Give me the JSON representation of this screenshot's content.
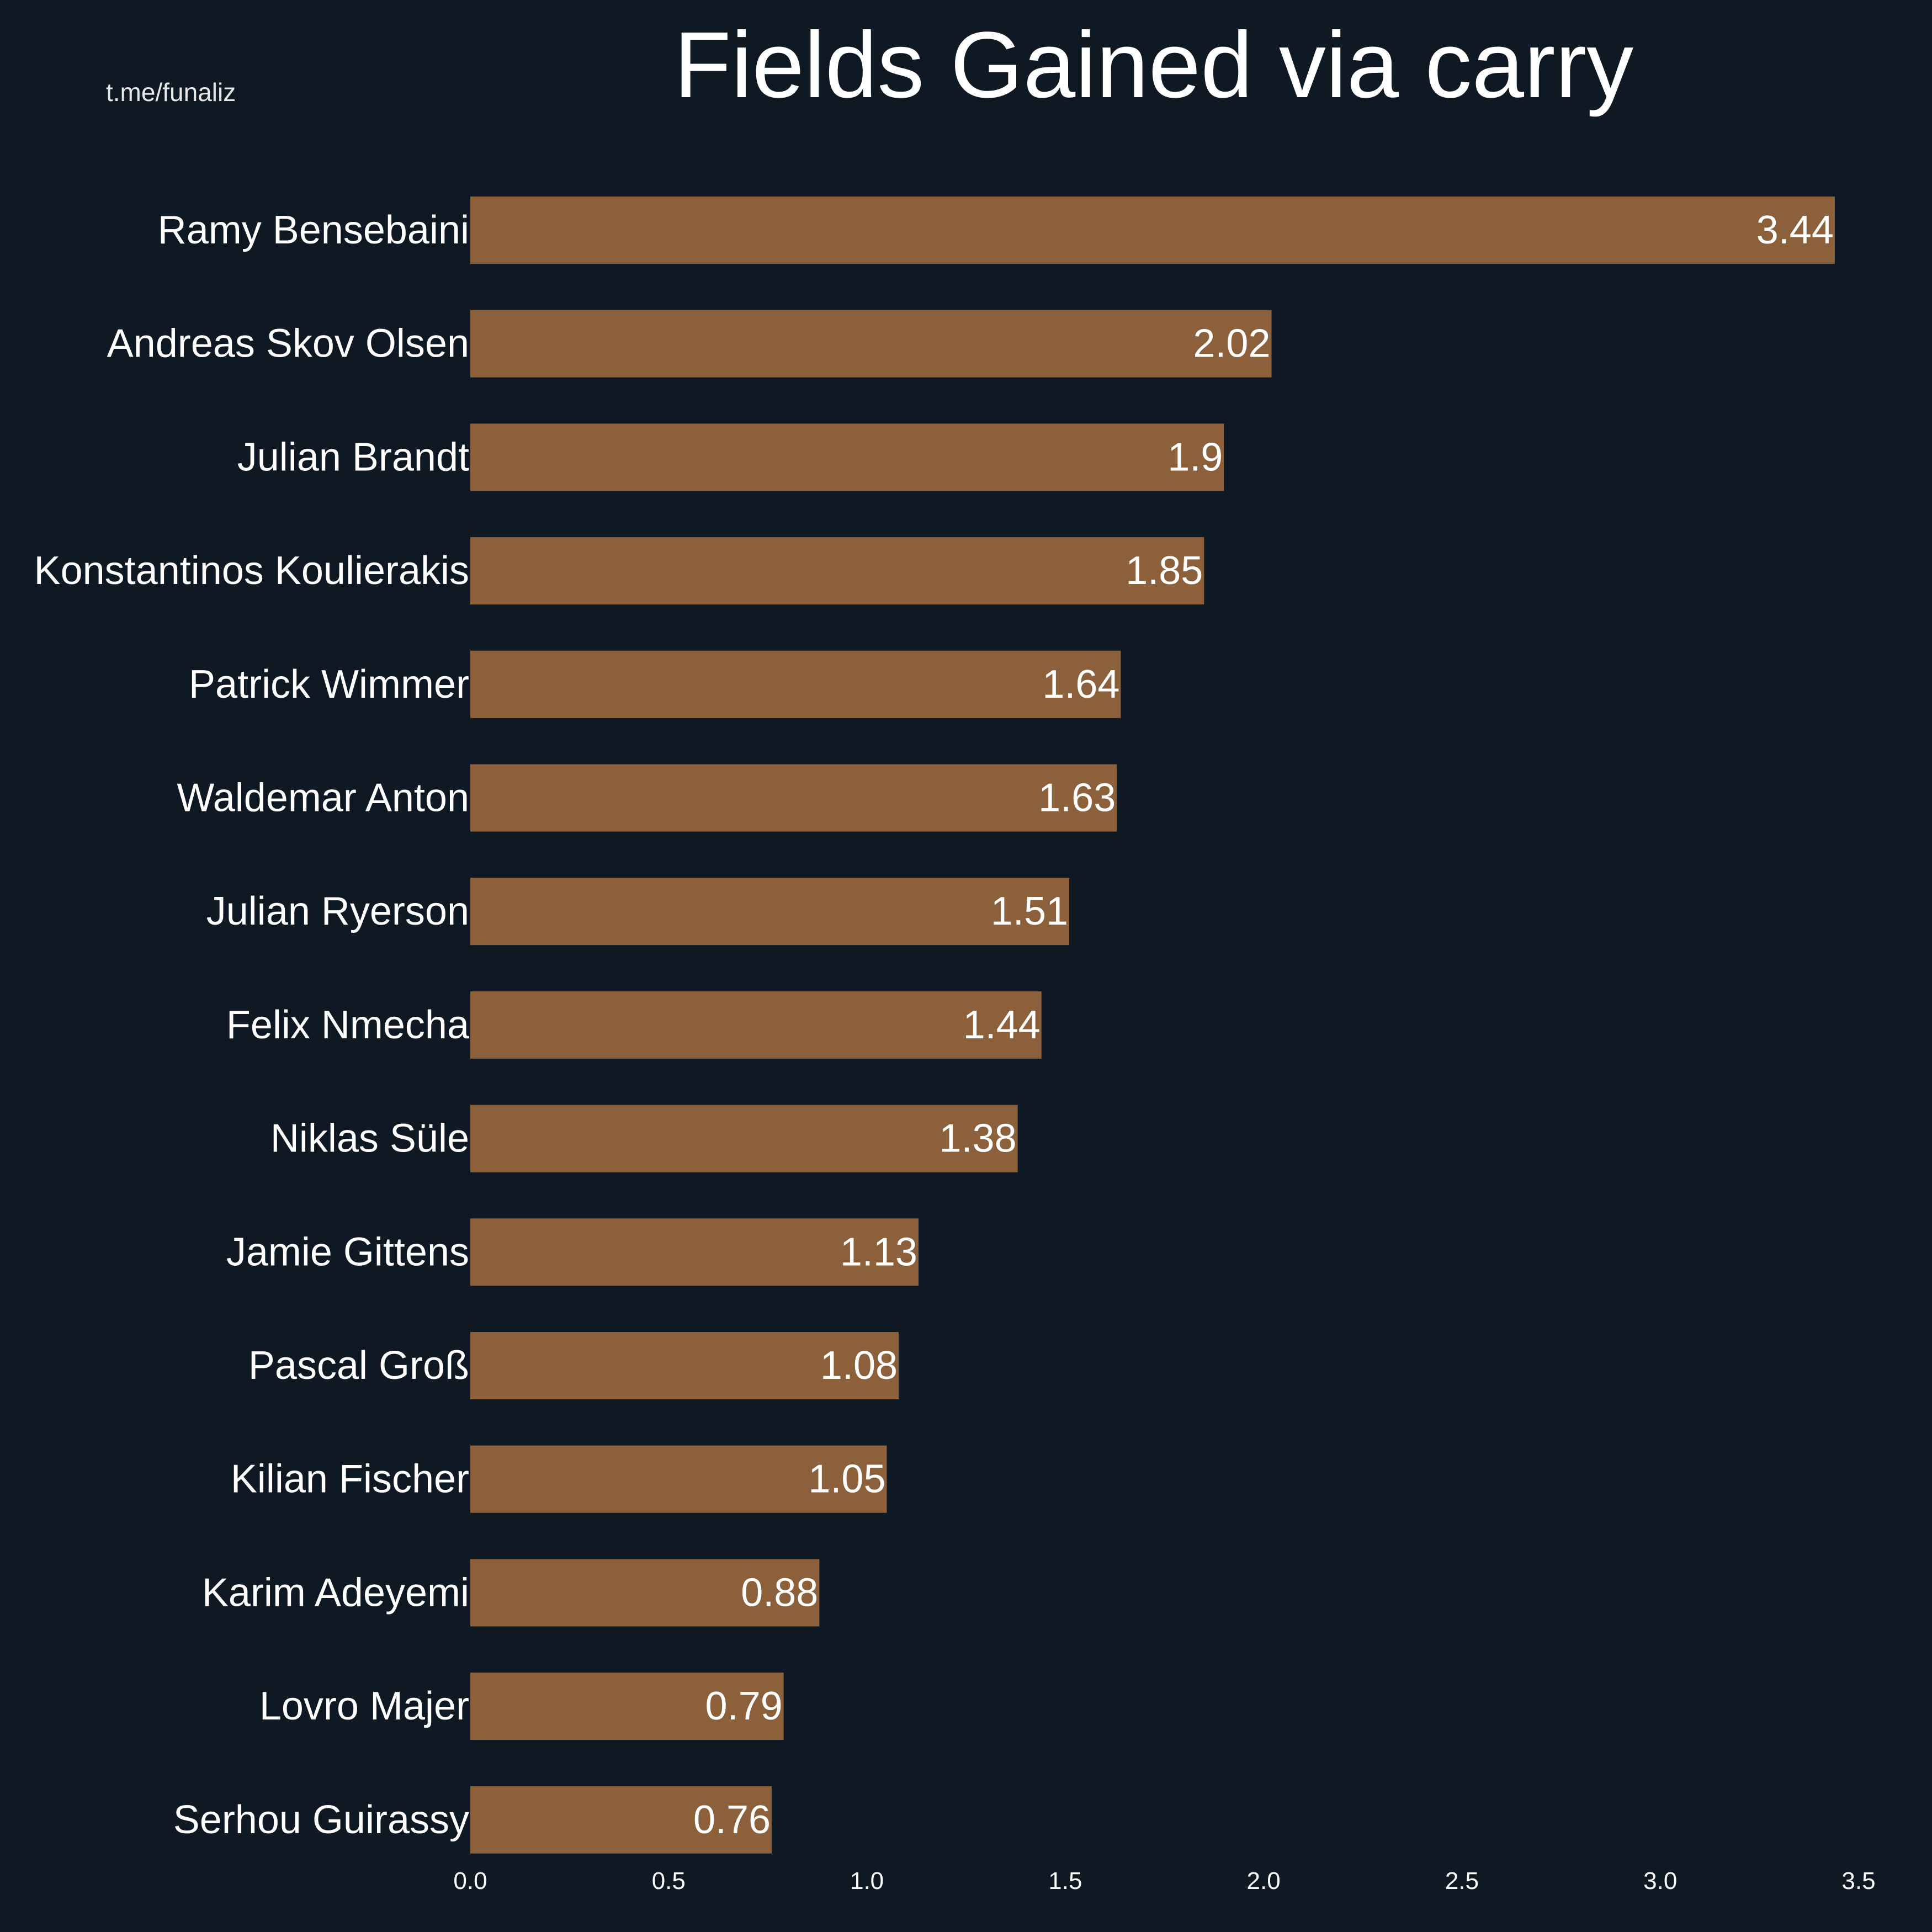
{
  "watermark": "t.me/funaliz",
  "chart_data": {
    "type": "bar",
    "orientation": "horizontal",
    "title": "Fields Gained via carry",
    "categories": [
      "Ramy Bensebaini",
      "Andreas Skov Olsen",
      "Julian Brandt",
      "Konstantinos Koulierakis",
      "Patrick Wimmer",
      "Waldemar Anton",
      "Julian Ryerson",
      "Felix Nmecha",
      "Niklas Süle",
      "Jamie Gittens",
      "Pascal Groß",
      "Kilian Fischer",
      "Karim Adeyemi",
      "Lovro Majer",
      "Serhou Guirassy"
    ],
    "values": [
      3.44,
      2.02,
      1.9,
      1.85,
      1.64,
      1.63,
      1.51,
      1.44,
      1.38,
      1.13,
      1.08,
      1.05,
      0.88,
      0.79,
      0.76
    ],
    "value_labels": [
      "3.44",
      "2.02",
      "1.9",
      "1.85",
      "1.64",
      "1.63",
      "1.51",
      "1.44",
      "1.38",
      "1.13",
      "1.08",
      "1.05",
      "0.88",
      "0.79",
      "0.76"
    ],
    "xticks": [
      "0.0",
      "0.5",
      "1.0",
      "1.5",
      "2.0",
      "2.5",
      "3.0",
      "3.5"
    ],
    "xlim": [
      0,
      3.5
    ],
    "xlabel": "",
    "ylabel": "",
    "grid": false,
    "bar_color": "#8b603a",
    "background_color": "#0f1923"
  }
}
